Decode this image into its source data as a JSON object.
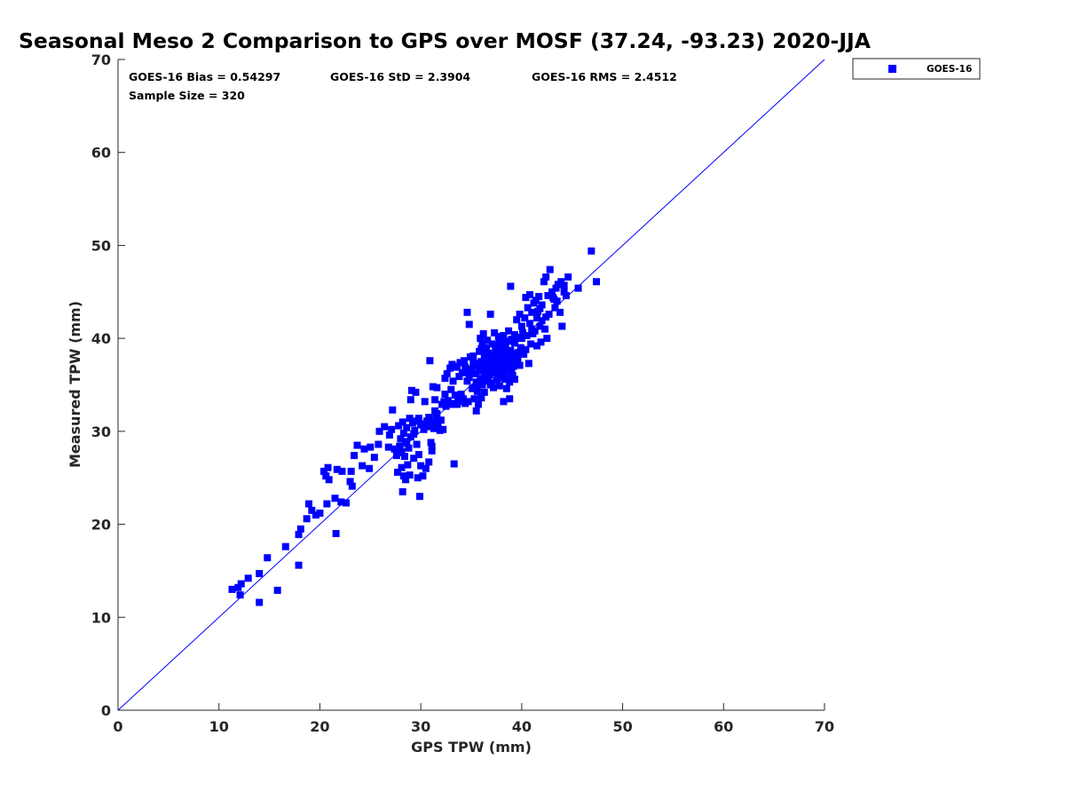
{
  "chart_data": {
    "type": "scatter",
    "title": "Seasonal Meso 2 Comparison to GPS over MOSF (37.24, -93.23) 2020-JJA",
    "xlabel": "GPS TPW (mm)",
    "ylabel": "Measured TPW (mm)",
    "xlim": [
      0,
      70
    ],
    "ylim": [
      0,
      70
    ],
    "xticks": [
      "0",
      "10",
      "20",
      "30",
      "40",
      "50",
      "60",
      "70"
    ],
    "yticks": [
      "0",
      "10",
      "20",
      "30",
      "40",
      "50",
      "60",
      "70"
    ],
    "grid": false,
    "legend_position": "top-right-outside",
    "stats": {
      "bias": "GOES-16 Bias = 0.54297",
      "std": "GOES-16 StD = 2.3904",
      "rms": "GOES-16 RMS = 2.4512",
      "sample_size": "Sample Size = 320"
    },
    "reference_line": {
      "x": [
        0,
        70
      ],
      "y": [
        0,
        70
      ],
      "color": "#0000ff"
    },
    "series": [
      {
        "name": "GOES-16",
        "color": "#0000ff",
        "marker": "square",
        "points": [
          [
            11.3,
            13.0
          ],
          [
            11.9,
            13.2
          ],
          [
            12.2,
            13.6
          ],
          [
            12.1,
            12.4
          ],
          [
            12.9,
            14.2
          ],
          [
            14.0,
            14.7
          ],
          [
            14.0,
            11.6
          ],
          [
            14.8,
            16.4
          ],
          [
            15.8,
            12.9
          ],
          [
            16.6,
            17.6
          ],
          [
            17.9,
            15.6
          ],
          [
            17.9,
            18.9
          ],
          [
            18.1,
            19.5
          ],
          [
            18.7,
            20.6
          ],
          [
            18.9,
            22.2
          ],
          [
            19.2,
            21.5
          ],
          [
            19.6,
            21.0
          ],
          [
            20.0,
            21.2
          ],
          [
            20.4,
            25.7
          ],
          [
            20.6,
            25.2
          ],
          [
            20.7,
            22.2
          ],
          [
            20.8,
            26.1
          ],
          [
            20.9,
            24.8
          ],
          [
            21.5,
            22.8
          ],
          [
            21.6,
            19.0
          ],
          [
            21.7,
            25.9
          ],
          [
            22.1,
            22.4
          ],
          [
            22.2,
            25.7
          ],
          [
            22.6,
            22.3
          ],
          [
            23.0,
            24.6
          ],
          [
            23.1,
            25.7
          ],
          [
            23.2,
            24.1
          ],
          [
            23.4,
            27.4
          ],
          [
            23.7,
            28.5
          ],
          [
            24.2,
            26.3
          ],
          [
            24.4,
            28.1
          ],
          [
            24.9,
            26.0
          ],
          [
            25.0,
            28.3
          ],
          [
            25.4,
            27.2
          ],
          [
            25.8,
            28.6
          ],
          [
            25.9,
            30.0
          ],
          [
            26.4,
            30.5
          ],
          [
            26.8,
            28.3
          ],
          [
            26.9,
            29.6
          ],
          [
            27.1,
            30.2
          ],
          [
            27.2,
            32.3
          ],
          [
            27.4,
            28.1
          ],
          [
            27.6,
            27.4
          ],
          [
            27.7,
            25.6
          ],
          [
            27.8,
            30.6
          ],
          [
            27.9,
            28.4
          ],
          [
            28.0,
            29.2
          ],
          [
            28.1,
            27.8
          ],
          [
            28.1,
            26.1
          ],
          [
            28.2,
            23.5
          ],
          [
            28.3,
            25.2
          ],
          [
            28.3,
            29.8
          ],
          [
            28.4,
            27.3
          ],
          [
            28.5,
            28.8
          ],
          [
            28.5,
            24.8
          ],
          [
            28.6,
            30.4
          ],
          [
            28.7,
            26.4
          ],
          [
            28.8,
            28.2
          ],
          [
            28.9,
            25.3
          ],
          [
            29.0,
            29.4
          ],
          [
            29.0,
            33.4
          ],
          [
            29.1,
            34.4
          ],
          [
            29.2,
            30.9
          ],
          [
            29.3,
            27.1
          ],
          [
            29.4,
            30.1
          ],
          [
            29.5,
            34.2
          ],
          [
            29.6,
            28.6
          ],
          [
            29.7,
            25.0
          ],
          [
            29.8,
            31.4
          ],
          [
            29.8,
            27.5
          ],
          [
            29.9,
            23.0
          ],
          [
            30.0,
            26.3
          ],
          [
            30.1,
            30.7
          ],
          [
            30.2,
            25.2
          ],
          [
            30.3,
            30.2
          ],
          [
            30.4,
            33.2
          ],
          [
            30.5,
            26.0
          ],
          [
            30.6,
            30.5
          ],
          [
            30.8,
            31.5
          ],
          [
            30.8,
            26.7
          ],
          [
            30.9,
            37.6
          ],
          [
            31.0,
            28.8
          ],
          [
            31.1,
            28.4
          ],
          [
            31.1,
            27.9
          ],
          [
            31.2,
            34.8
          ],
          [
            31.2,
            31.0
          ],
          [
            31.3,
            30.3
          ],
          [
            31.4,
            33.4
          ],
          [
            31.5,
            31.5
          ],
          [
            31.6,
            34.7
          ],
          [
            31.7,
            30.8
          ],
          [
            31.9,
            30.1
          ],
          [
            32.0,
            31.2
          ],
          [
            32.1,
            32.9
          ],
          [
            32.2,
            30.2
          ],
          [
            32.3,
            33.2
          ],
          [
            32.4,
            35.7
          ],
          [
            32.5,
            32.7
          ],
          [
            32.6,
            36.2
          ],
          [
            32.7,
            33.3
          ],
          [
            32.9,
            36.8
          ],
          [
            33.0,
            34.5
          ],
          [
            33.1,
            37.2
          ],
          [
            33.2,
            32.9
          ],
          [
            33.3,
            26.5
          ],
          [
            33.4,
            36.9
          ],
          [
            33.5,
            33.0
          ],
          [
            33.6,
            37.0
          ],
          [
            33.7,
            33.2
          ],
          [
            33.9,
            37.4
          ],
          [
            34.0,
            34.0
          ],
          [
            34.1,
            36.3
          ],
          [
            34.2,
            33.5
          ],
          [
            34.3,
            37.6
          ],
          [
            34.4,
            33.0
          ],
          [
            34.5,
            36.5
          ],
          [
            34.6,
            42.8
          ],
          [
            34.7,
            33.2
          ],
          [
            34.8,
            35.8
          ],
          [
            34.8,
            41.5
          ],
          [
            34.9,
            38.0
          ],
          [
            35.0,
            36.7
          ],
          [
            35.1,
            34.6
          ],
          [
            35.2,
            37.4
          ],
          [
            35.3,
            33.5
          ],
          [
            35.4,
            36.2
          ],
          [
            35.5,
            32.2
          ],
          [
            35.5,
            35.3
          ],
          [
            35.6,
            37.0
          ],
          [
            35.6,
            34.3
          ],
          [
            35.7,
            32.9
          ],
          [
            35.8,
            38.6
          ],
          [
            35.8,
            36.5
          ],
          [
            35.9,
            35.7
          ],
          [
            35.9,
            40.0
          ],
          [
            36.0,
            33.6
          ],
          [
            36.0,
            37.5
          ],
          [
            36.1,
            39.3
          ],
          [
            36.1,
            35.0
          ],
          [
            36.2,
            40.5
          ],
          [
            36.2,
            36.6
          ],
          [
            36.3,
            34.2
          ],
          [
            36.3,
            37.9
          ],
          [
            36.4,
            36.0
          ],
          [
            36.4,
            38.9
          ],
          [
            36.5,
            35.4
          ],
          [
            36.5,
            37.2
          ],
          [
            36.6,
            39.8
          ],
          [
            36.6,
            36.4
          ],
          [
            36.7,
            35.8
          ],
          [
            36.7,
            38.4
          ],
          [
            36.8,
            37.0
          ],
          [
            36.8,
            36.1
          ],
          [
            36.9,
            38.2
          ],
          [
            36.9,
            42.6
          ],
          [
            37.0,
            35.2
          ],
          [
            37.0,
            37.5
          ],
          [
            37.1,
            39.4
          ],
          [
            37.1,
            36.7
          ],
          [
            37.2,
            38.0
          ],
          [
            37.2,
            34.7
          ],
          [
            37.3,
            40.6
          ],
          [
            37.3,
            37.1
          ],
          [
            37.4,
            36.3
          ],
          [
            37.4,
            38.7
          ],
          [
            37.5,
            35.5
          ],
          [
            37.5,
            37.8
          ],
          [
            37.6,
            39.0
          ],
          [
            37.6,
            36.5
          ],
          [
            37.7,
            38.3
          ],
          [
            37.7,
            40.2
          ],
          [
            37.8,
            37.2
          ],
          [
            37.8,
            34.9
          ],
          [
            37.9,
            38.9
          ],
          [
            37.9,
            36.8
          ],
          [
            38.0,
            39.6
          ],
          [
            38.0,
            37.4
          ],
          [
            38.1,
            35.9
          ],
          [
            38.1,
            38.1
          ],
          [
            38.2,
            33.2
          ],
          [
            38.2,
            40.3
          ],
          [
            38.3,
            37.0
          ],
          [
            38.3,
            38.6
          ],
          [
            38.4,
            36.2
          ],
          [
            38.4,
            39.2
          ],
          [
            38.5,
            37.6
          ],
          [
            38.5,
            34.6
          ],
          [
            38.6,
            38.3
          ],
          [
            38.6,
            36.6
          ],
          [
            38.7,
            40.8
          ],
          [
            38.7,
            37.9
          ],
          [
            38.8,
            35.3
          ],
          [
            38.8,
            33.5
          ],
          [
            38.9,
            38.7
          ],
          [
            38.9,
            45.6
          ],
          [
            39.0,
            37.3
          ],
          [
            39.0,
            39.9
          ],
          [
            39.1,
            36.0
          ],
          [
            39.1,
            38.4
          ],
          [
            39.2,
            37.0
          ],
          [
            39.3,
            39.5
          ],
          [
            39.3,
            35.6
          ],
          [
            39.4,
            38.1
          ],
          [
            39.5,
            42.0
          ],
          [
            39.6,
            37.5
          ],
          [
            39.6,
            40.1
          ],
          [
            39.7,
            38.5
          ],
          [
            39.8,
            42.6
          ],
          [
            39.9,
            39.0
          ],
          [
            40.0,
            41.3
          ],
          [
            40.1,
            40.6
          ],
          [
            40.2,
            38.3
          ],
          [
            40.3,
            42.2
          ],
          [
            40.4,
            44.4
          ],
          [
            40.5,
            40.3
          ],
          [
            40.6,
            43.3
          ],
          [
            40.7,
            37.3
          ],
          [
            40.8,
            44.7
          ],
          [
            40.9,
            39.4
          ],
          [
            41.0,
            42.8
          ],
          [
            41.1,
            40.5
          ],
          [
            41.2,
            43.8
          ],
          [
            41.3,
            40.8
          ],
          [
            41.4,
            44.1
          ],
          [
            41.5,
            39.2
          ],
          [
            41.6,
            42.9
          ],
          [
            41.7,
            44.5
          ],
          [
            41.8,
            43.2
          ],
          [
            41.9,
            39.6
          ],
          [
            42.0,
            41.9
          ],
          [
            42.2,
            46.1
          ],
          [
            42.3,
            41.0
          ],
          [
            42.4,
            46.6
          ],
          [
            42.5,
            40.0
          ],
          [
            42.6,
            44.6
          ],
          [
            42.7,
            42.6
          ],
          [
            42.8,
            47.4
          ],
          [
            43.0,
            45.0
          ],
          [
            43.2,
            44.2
          ],
          [
            43.4,
            45.4
          ],
          [
            43.5,
            44.0
          ],
          [
            43.6,
            45.8
          ],
          [
            43.8,
            42.8
          ],
          [
            43.9,
            46.1
          ],
          [
            44.0,
            41.3
          ],
          [
            44.2,
            45.7
          ],
          [
            44.4,
            44.6
          ],
          [
            44.6,
            46.6
          ],
          [
            45.6,
            45.4
          ],
          [
            46.9,
            49.4
          ],
          [
            47.4,
            46.1
          ],
          [
            33.6,
            32.9
          ],
          [
            34.0,
            33.6
          ],
          [
            35.4,
            34.7
          ],
          [
            36.9,
            35.0
          ],
          [
            37.5,
            38.6
          ],
          [
            38.1,
            39.9
          ],
          [
            38.9,
            38.0
          ],
          [
            39.6,
            37.9
          ],
          [
            36.4,
            37.7
          ],
          [
            37.2,
            37.6
          ],
          [
            38.0,
            36.4
          ],
          [
            35.9,
            36.8
          ],
          [
            36.5,
            39.0
          ],
          [
            37.8,
            39.5
          ],
          [
            38.6,
            39.7
          ],
          [
            39.3,
            40.4
          ],
          [
            40.0,
            40.0
          ],
          [
            40.8,
            41.6
          ],
          [
            41.5,
            42.2
          ],
          [
            42.0,
            43.6
          ],
          [
            43.1,
            44.4
          ],
          [
            44.2,
            45.0
          ],
          [
            30.0,
            30.8
          ],
          [
            29.3,
            29.7
          ],
          [
            28.6,
            28.9
          ],
          [
            27.9,
            27.7
          ],
          [
            31.6,
            31.9
          ],
          [
            32.8,
            33.0
          ],
          [
            33.4,
            33.9
          ],
          [
            34.6,
            35.4
          ],
          [
            35.1,
            36.2
          ],
          [
            35.7,
            37.3
          ],
          [
            36.3,
            38.5
          ],
          [
            37.1,
            36.3
          ],
          [
            37.7,
            35.7
          ],
          [
            38.4,
            35.6
          ],
          [
            39.0,
            36.6
          ],
          [
            39.8,
            37.1
          ],
          [
            40.4,
            38.8
          ],
          [
            41.0,
            41.0
          ],
          [
            41.8,
            41.3
          ],
          [
            42.4,
            42.3
          ],
          [
            43.3,
            43.3
          ],
          [
            28.2,
            31.0
          ],
          [
            28.9,
            31.4
          ],
          [
            29.6,
            31.1
          ],
          [
            30.6,
            31.1
          ],
          [
            31.4,
            32.2
          ],
          [
            32.4,
            34.0
          ],
          [
            33.2,
            35.4
          ],
          [
            33.8,
            35.9
          ],
          [
            34.4,
            36.9
          ],
          [
            35.2,
            38.1
          ],
          [
            36.0,
            38.9
          ]
        ]
      }
    ]
  }
}
